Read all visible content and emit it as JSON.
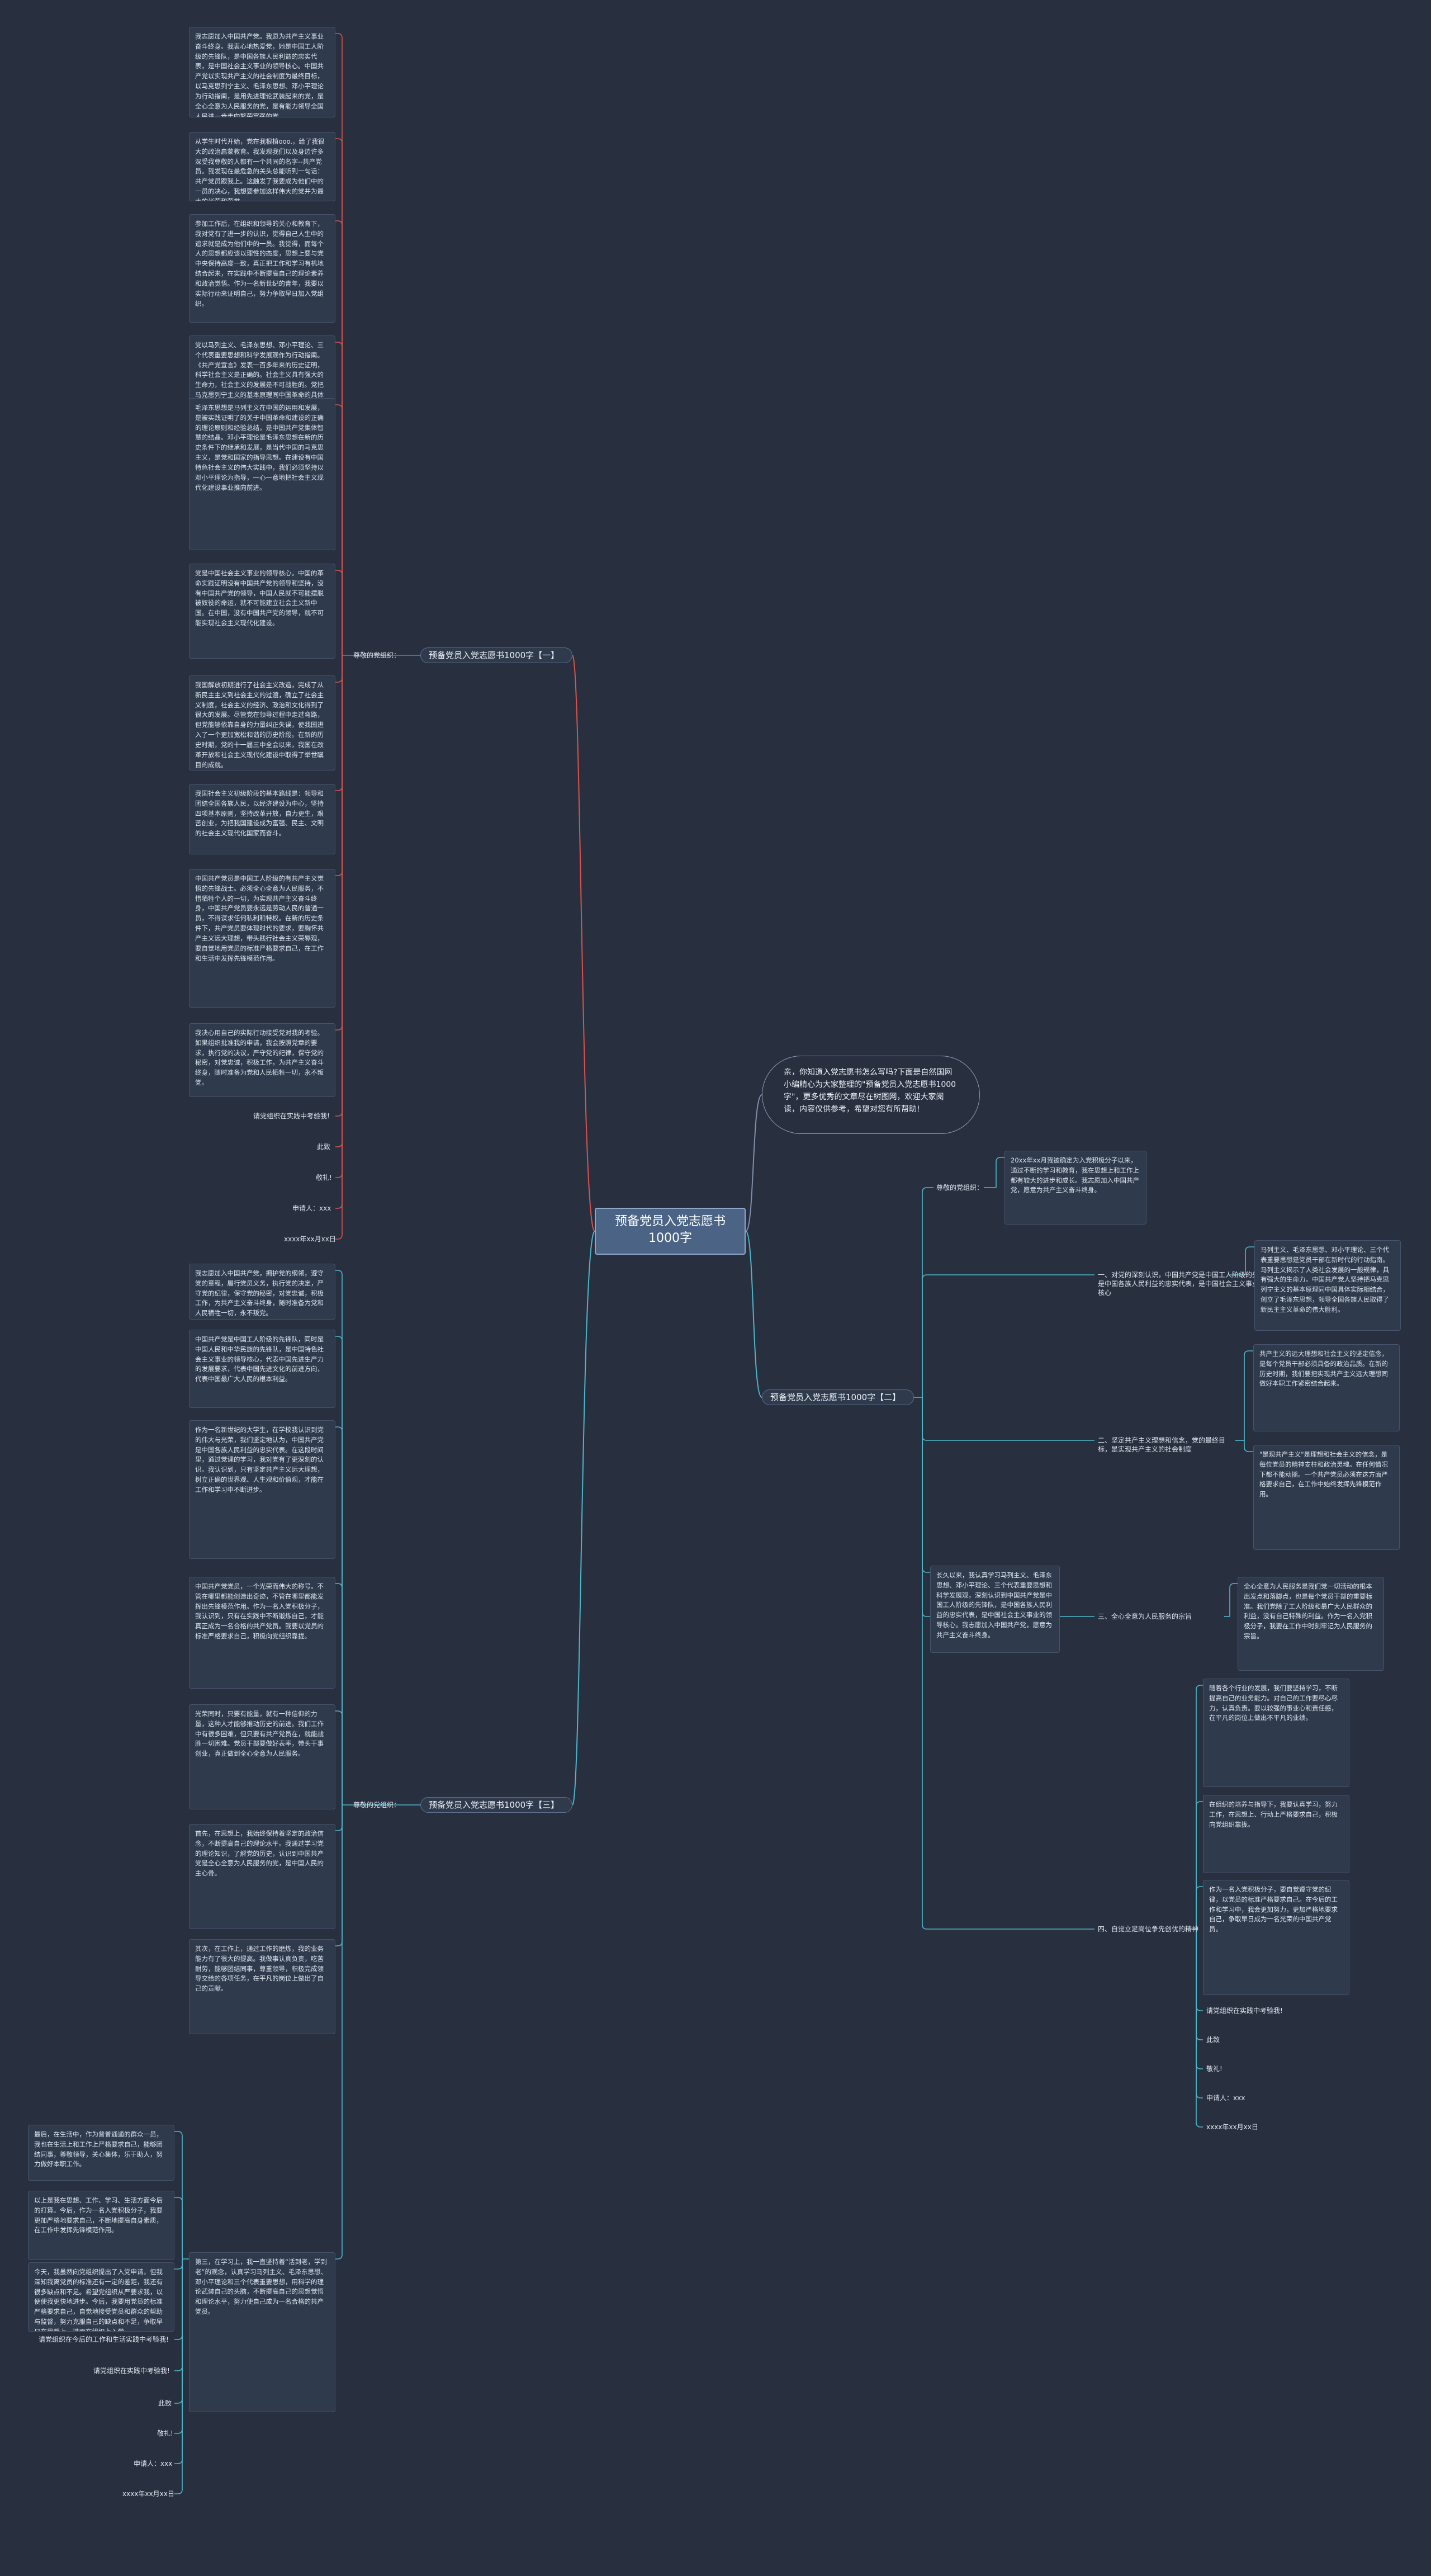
{
  "root": {
    "title": "预备党员入党志愿书1000字"
  },
  "intro": "亲，你知道入党志愿书怎么写吗?下面是自然国网小编精心为大家整理的\"预备党员入党志愿书1000字\"，更多优秀的文章尽在树图网，欢迎大家阅读，内容仅供参考，希望对您有所帮助!",
  "sections": [
    {
      "title": "预备党员入党志愿书1000字【一】",
      "sub_label": "尊敬的党组织：",
      "paragraphs": [
        "我志愿加入中国共产党。我愿为共产主义事业奋斗终身。我衷心地热爱党，她是中国工人阶级的先锋队，是中国各族人民利益的忠实代表，是中国社会主义事业的领导核心。中国共产党以实现共产主义的社会制度为最终目标，以马克思列宁主义、毛泽东思想、邓小平理论为行动指南，是用先进理论武装起来的党，是全心全意为人民服务的党，是有能力领导全国人民进一步走向繁荣富强的党。",
        "从学生时代开始，党在我根植ooo.，给了我很大的政治启蒙教育。我发现我们以及身边许多深受我尊敬的人都有一个共同的名字--共产党员。我发现在最危急的关头总能听到一句话：共产党员跟我上。这触发了我要成为他们中的一员的决心，我想要参加这样伟大的党并为最大的光荣和荣誉。",
        "参加工作后，在组织和领导的关心和教育下，我对党有了进一步的认识，觉得自己人生中的追求就是成为他们中的一员。我觉得，而每个人的思想都应该以理性的态度，思想上要与党中央保持高度一致，真正把工作和学习有机地结合起来，在实践中不断提高自己的理论素养和政治觉悟。作为一名新世纪的青年，我要以实际行动来证明自己，努力争取早日加入党组织。",
        "党以马列主义、毛泽东思想、邓小平理论、三个代表重要思想和科学发展观作为行动指南。《共产党宣言》发表一百多年来的历史证明，科学社会主义是正确的。社会主义具有强大的生命力，社会主义的发展是不可战胜的。党把马克思列宁主义的基本原理同中国革命的具体实践相结合，创立了毛泽东思想，领导全国各族人民经过长期的革命斗争，取得了新民主主义革命的胜利。",
        "毛泽东思想是马列主义在中国的运用和发展，是被实践证明了的关于中国革命和建设的正确的理论原则和经验总结，是中国共产党集体智慧的结晶。邓小平理论是毛泽东思想在新的历史条件下的继承和发展，是当代中国的马克思主义，是党和国家的指导思想。在建设有中国特色社会主义的伟大实践中，我们必须坚持以邓小平理论为指导，一心一意地把社会主义现代化建设事业推向前进。",
        "党是中国社会主义事业的领导核心。中国的革命实践证明没有中国共产党的领导和坚持，没有中国共产党的领导，中国人民就不可能摆脱被奴役的命运，就不可能建立社会主义新中国。在中国，没有中国共产党的领导，就不可能实现社会主义现代化建设。",
        "我国解放初期进行了社会主义改造，完成了从新民主主义到社会主义的过渡，确立了社会主义制度，社会主义的经济、政治和文化得到了很大的发展。尽管党在领导过程中走过弯路，但党能够依靠自身的力量纠正失误，使我国进入了一个更加宽松和谐的历史阶段。在新的历史时期，党的十一届三中全会以来，我国在改革开放和社会主义现代化建设中取得了举世瞩目的成就。",
        "我国社会主义初级阶段的基本路线是：领导和团结全国各族人民，以经济建设为中心，坚持四项基本原则，坚持改革开放，自力更生，艰苦创业，为把我国建设成为富强、民主、文明的社会主义现代化国家而奋斗。",
        "中国共产党员是中国工人阶级的有共产主义觉悟的先锋战士。必须全心全意为人民服务，不惜牺牲个人的一切，为实现共产主义奋斗终身，中国共产党员要永远是劳动人民的普通一员，不得谋求任何私利和特权。在新的历史条件下，共产党员要体现时代的要求，要胸怀共产主义远大理想，带头践行社会主义荣辱观，要自觉地用党员的标准严格要求自己，在工作和生活中发挥先锋模范作用。",
        "我决心用自己的实际行动接受党对我的考验。如果组织批准我的申请，我会按照党章的要求，执行党的决议，严守党的纪律，保守党的秘密，对党忠诚，积极工作，为共产主义奋斗终身，随时准备为党和人民牺牲一切，永不叛党。",
        "请党组织在实践中考验我!",
        "此致",
        "敬礼!",
        "申请人：xxx",
        "xxxx年xx月xx日"
      ]
    },
    {
      "title": "预备党员入党志愿书1000字【二】",
      "sub_label": "尊敬的党组织：",
      "opening": "20xx年xx月我被确定为入党积极分子以来，通过不断的学习和教育，我在思想上和工作上都有较大的进步和成长。我志愿加入中国共产党，愿意为共产主义奋斗终身。",
      "points": [
        {
          "label": "一、对党的深刻认识，中国共产党是中国工人阶级的先锋队，是中国各族人民利益的忠实代表，是中国社会主义事业的领导核心",
          "details": [
            "马列主义、毛泽东思想、邓小平理论、三个代表重要思想是党员干部在新时代的行动指南。马列主义揭示了人类社会发展的一般规律，具有强大的生命力。中国共产党人坚持把马克思列宁主义的基本原理同中国具体实际相结合，创立了毛泽东思想，领导全国各族人民取得了新民主主义革命的伟大胜利。"
          ]
        },
        {
          "label": "二、坚定共产主义理想和信念，党的最终目标，是实现共产主义的社会制度",
          "details": [
            "共产主义的远大理想和社会主义的坚定信念，是每个党员干部必须具备的政治品质。在新的历史时期，我们要把实现共产主义远大理想同做好本职工作紧密结合起来。",
            "\"是现共产主义\"是理想和社会主义的信念，是每位党员的精神支柱和政治灵魂。在任何情况下都不能动摇。一个共产党员必须在这方面严格要求自己，在工作中始终发挥先锋模范作用。"
          ]
        },
        {
          "label": "三、全心全意为人民服务的宗旨",
          "details": [
            "全心全意为人民服务是我们党一切活动的根本出发点和落脚点，也是每个党员干部的重要标准。我们党除了工人阶级和最广大人民群众的利益，没有自己特殊的利益。作为一名入党积极分子，我要在工作中时刻牢记为人民服务的宗旨。"
          ]
        },
        {
          "label": "四、自觉立足岗位争先创优的精神",
          "details": [
            "随着各个行业的发展，我们要坚持学习，不断提高自己的业务能力。对自己的工作要尽心尽力，认真负责。要以较强的事业心和责任感，在平凡的岗位上做出不平凡的业绩。",
            "在组织的培养与指导下，我要认真学习，努力工作，在思想上、行动上严格要求自己，积极向党组织靠拢。",
            "作为一名入党积极分子，要自觉遵守党的纪律，以党员的标准严格要求自己。在今后的工作和学习中，我会更加努力，更加严格地要求自己，争取早日成为一名光荣的中国共产党员。",
            "请党组织在实践中考验我!",
            "此致",
            "敬礼!",
            "申请人：xxx",
            "xxxx年xx月xx日"
          ]
        }
      ],
      "closing": "长久以来，我认真学习马列主义、毛泽东思想、邓小平理论、三个代表重要思想和科学发展观，深刻认识到中国共产党是中国工人阶级的先锋队，是中国各族人民利益的忠实代表，是中国社会主义事业的领导核心。我志愿加入中国共产党，愿意为共产主义奋斗终身。"
    },
    {
      "title": "预备党员入党志愿书1000字【三】",
      "sub_label": "尊敬的党组织：",
      "paragraphs": [
        "我志愿加入中国共产党，拥护党的纲领，遵守党的章程，履行党员义务，执行党的决定，严守党的纪律，保守党的秘密，对党忠诚，积极工作，为共产主义奋斗终身，随时准备为党和人民牺牲一切，永不叛党。",
        "中国共产党是中国工人阶级的先锋队，同时是中国人民和中华民族的先锋队，是中国特色社会主义事业的领导核心，代表中国先进生产力的发展要求，代表中国先进文化的前进方向，代表中国最广大人民的根本利益。",
        "作为一名新世纪的大学生，在学校我认识到党的伟大与光荣，我们坚定地认为，中国共产党是中国各族人民利益的忠实代表。在这段时间里，通过党课的学习，我对党有了更深刻的认识。我认识到，只有坚定共产主义远大理想，树立正确的世界观、人生观和价值观，才能在工作和学习中不断进步。",
        "中国共产党党员，一个光荣而伟大的称号。不管在哪里都能创造出奇迹，不管在哪里都能发挥出先锋模范作用。作为一名入党积极分子，我认识到，只有在实践中不断锻炼自己，才能真正成为一名合格的共产党员。我要以党员的标准严格要求自己，积极向党组织靠拢。",
        "光荣同时，只要有能量，就有一种信仰的力量，这种人才能够推动历史的前进。我们工作中有很多困难，但只要有共产党员在，就能战胜一切困难。党员干部要做好表率，带头干事创业，真正做到全心全意为人民服务。",
        "首先，在思想上，我始终保持着坚定的政治信念，不断提高自己的理论水平。我通过学习党的理论知识，了解党的历史，认识到中国共产党是全心全意为人民服务的党，是中国人民的主心骨。",
        "其次，在工作上，通过工作的磨炼，我的业务能力有了很大的提高。我做事认真负责，吃苦耐劳，能够团结同事，尊重领导，积极完成领导交给的各项任务，在平凡的岗位上做出了自己的贡献。",
        "第三，在学习上，我一直坚持着“活到老，学到老”的观念，认真学习马列主义、毛泽东思想、邓小平理论和三个代表重要思想，用科学的理论武装自己的头脑，不断提高自己的思想觉悟和理论水平，努力使自己成为一名合格的共产党员。",
        "请党组织在今后的工作和生活实践中考验我!",
        "请党组织在实践中考验我!",
        "此致",
        "敬礼!",
        "申请人：xxx",
        "xxxx年xx月xx日"
      ],
      "extra_paragraphs": [
        "最后，在生活中，作为普普通通的群众一员，我也在生活上和工作上严格要求自己，能够团结同事，尊敬领导，关心集体，乐于助人，努力做好本职工作。",
        "以上是我在思想、工作、学习、生活方面今后的打算。今后，作为一名入党积极分子，我要更加严格地要求自己，不断地提高自身素质，在工作中发挥先锋模范作用。",
        "今天，我虽然向党组织提出了入党申请，但我深知我离党员的标准还有一定的差距，我还有很多缺点和不足。希望党组织从严要求我，以便使我更快地进步。今后，我要用党员的标准严格要求自己，自觉地接受党员和群众的帮助与监督，努力克服自己的缺点和不足，争取早日在思想上，进而在组织上入党。"
      ]
    }
  ]
}
